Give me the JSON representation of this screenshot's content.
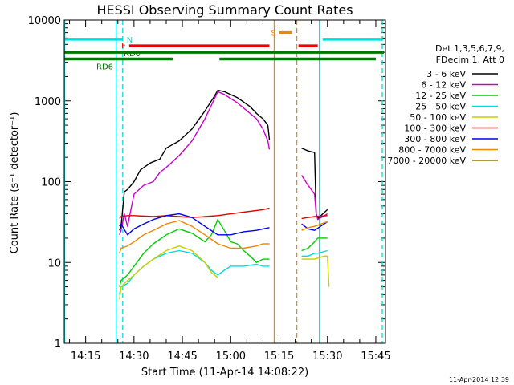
{
  "chart_data": {
    "type": "line",
    "title": "HESSI Observing Summary Count Rates",
    "xlabel": "Start Time (11-Apr-14 14:08:22)",
    "ylabel": "Count Rate (s⁻¹ detector⁻¹)",
    "yscale": "log",
    "ylim": [
      1,
      10000
    ],
    "xlim": [
      "14:08:22",
      "15:48:00"
    ],
    "x_ticks": [
      "14:15",
      "14:30",
      "14:45",
      "15:00",
      "15:15",
      "15:30",
      "15:45"
    ],
    "y_ticks": [
      "1",
      "10",
      "100",
      "1000",
      "10000"
    ],
    "grid": false,
    "legend_position": "right",
    "legend_header": [
      "Det 1,3,5,6,7,9,",
      "FDecim 1, Att 0"
    ],
    "date_stamp": "11-Apr-2014 12:39",
    "series": [
      {
        "name": "3 - 6 keV",
        "color": "#000000",
        "segments": [
          {
            "x": [
              "14:25:30",
              "14:26:00",
              "14:27:00",
              "14:28:00",
              "14:30:00",
              "14:32:00",
              "14:35:00",
              "14:38:00",
              "14:40:00",
              "14:44:00",
              "14:48:00",
              "14:52:00",
              "14:55:00",
              "14:56:00",
              "14:58:00",
              "15:02:00",
              "15:06:00",
              "15:08:00",
              "15:10:00",
              "15:11:30",
              "15:12:00"
            ],
            "y": [
              25,
              28,
              75,
              80,
              100,
              140,
              170,
              190,
              260,
              320,
              450,
              750,
              1150,
              1350,
              1300,
              1100,
              850,
              700,
              600,
              500,
              330
            ]
          },
          {
            "x": [
              "15:22:00",
              "15:24:00",
              "15:26:00",
              "15:26:30",
              "15:27:00",
              "15:30:00"
            ],
            "y": [
              260,
              240,
              230,
              40,
              35,
              45
            ]
          }
        ]
      },
      {
        "name": "6 - 12 keV",
        "color": "#cc00cc",
        "segments": [
          {
            "x": [
              "14:25:30",
              "14:26:00",
              "14:27:00",
              "14:28:00",
              "14:30:00",
              "14:33:00",
              "14:36:00",
              "14:38:00",
              "14:40:00",
              "14:44:00",
              "14:48:00",
              "14:52:00",
              "14:56:00",
              "14:58:00",
              "15:02:00",
              "15:06:00",
              "15:08:00",
              "15:10:00",
              "15:11:30",
              "15:12:00"
            ],
            "y": [
              22,
              25,
              40,
              28,
              70,
              90,
              100,
              130,
              150,
              210,
              320,
              600,
              1300,
              1200,
              950,
              700,
              600,
              450,
              320,
              250
            ]
          },
          {
            "x": [
              "15:22:00",
              "15:24:00",
              "15:26:00",
              "15:26:30",
              "15:27:00",
              "15:30:00"
            ],
            "y": [
              120,
              90,
              70,
              40,
              34,
              40
            ]
          }
        ]
      },
      {
        "name": "12 - 25 keV",
        "color": "#00cc00",
        "segments": [
          {
            "x": [
              "14:25:30",
              "14:26:00",
              "14:28:00",
              "14:30:00",
              "14:33:00",
              "14:36:00",
              "14:40:00",
              "14:44:00",
              "14:48:00",
              "14:52:00",
              "14:54:00",
              "14:56:00",
              "14:58:00",
              "15:00:00",
              "15:02:00",
              "15:04:00",
              "15:06:00",
              "15:08:00",
              "15:10:00",
              "15:12:00"
            ],
            "y": [
              5,
              6,
              7,
              9,
              13,
              17,
              22,
              26,
              23,
              18,
              22,
              34,
              25,
              18,
              17,
              14,
              12,
              10,
              11,
              11
            ]
          },
          {
            "x": [
              "15:22:00",
              "15:24:00",
              "15:26:00",
              "15:27:00",
              "15:30:00"
            ],
            "y": [
              14,
              15,
              18,
              20,
              20
            ]
          }
        ]
      },
      {
        "name": "25 - 50 keV",
        "color": "#00dddd",
        "segments": [
          {
            "x": [
              "14:25:30",
              "14:26:00",
              "14:28:00",
              "14:30:00",
              "14:33:00",
              "14:36:00",
              "14:40:00",
              "14:44:00",
              "14:48:00",
              "14:52:00",
              "14:54:00",
              "14:56:00",
              "14:58:00",
              "15:00:00",
              "15:04:00",
              "15:08:00",
              "15:10:00",
              "15:12:00"
            ],
            "y": [
              4,
              5,
              5.5,
              7,
              9,
              11,
              13,
              14,
              13,
              10,
              8,
              7,
              8,
              9,
              9,
              9.5,
              9,
              9
            ]
          },
          {
            "x": [
              "15:22:00",
              "15:24:00",
              "15:26:00",
              "15:27:00",
              "15:30:00"
            ],
            "y": [
              12,
              12,
              13,
              13,
              14
            ]
          }
        ]
      },
      {
        "name": "50 - 100 keV",
        "color": "#cccc00",
        "segments": [
          {
            "x": [
              "14:25:30",
              "14:26:00",
              "14:28:00",
              "14:30:00",
              "14:33:00",
              "14:36:00",
              "14:40:00",
              "14:44:00",
              "14:48:00",
              "14:52:00",
              "14:54:00",
              "14:56:00"
            ],
            "y": [
              3.5,
              5,
              6,
              7,
              9,
              11,
              14,
              16,
              14,
              10,
              7.5,
              6.5
            ]
          },
          {
            "x": [
              "15:22:00",
              "15:26:00",
              "15:29:00",
              "15:30:00",
              "15:30:30"
            ],
            "y": [
              11,
              11,
              12,
              12,
              5
            ]
          }
        ]
      },
      {
        "name": "100 - 300 keV",
        "color": "#dd0000",
        "segments": [
          {
            "x": [
              "14:25:30",
              "14:26:00",
              "14:28:00",
              "14:30:00",
              "14:36:00",
              "14:40:00",
              "14:44:00",
              "14:48:00",
              "14:52:00",
              "14:56:00",
              "15:00:00",
              "15:04:00",
              "15:08:00",
              "15:10:00",
              "15:12:00"
            ],
            "y": [
              35,
              37,
              38,
              38,
              37,
              38,
              37,
              36,
              37,
              38,
              40,
              42,
              44,
              45,
              47
            ]
          },
          {
            "x": [
              "15:22:00",
              "15:26:00",
              "15:30:00"
            ],
            "y": [
              35,
              37,
              38
            ]
          }
        ]
      },
      {
        "name": "300 - 800 keV",
        "color": "#0000ee",
        "segments": [
          {
            "x": [
              "14:25:30",
              "14:26:00",
              "14:28:00",
              "14:30:00",
              "14:33:00",
              "14:36:00",
              "14:40:00",
              "14:44:00",
              "14:48:00",
              "14:52:00",
              "14:56:00",
              "15:00:00",
              "15:04:00",
              "15:08:00",
              "15:10:00",
              "15:12:00"
            ],
            "y": [
              28,
              30,
              22,
              26,
              30,
              34,
              38,
              40,
              36,
              28,
              22,
              22,
              24,
              25,
              26,
              27
            ]
          },
          {
            "x": [
              "15:22:00",
              "15:24:00",
              "15:26:00",
              "15:30:00"
            ],
            "y": [
              30,
              26,
              25,
              32
            ]
          }
        ]
      },
      {
        "name": "800 - 7000 keV",
        "color": "#ee8800",
        "segments": [
          {
            "x": [
              "14:25:30",
              "14:26:00",
              "14:28:00",
              "14:30:00",
              "14:33:00",
              "14:36:00",
              "14:40:00",
              "14:44:00",
              "14:48:00",
              "14:52:00",
              "14:56:00",
              "15:00:00",
              "15:04:00",
              "15:08:00",
              "15:10:00",
              "15:12:00"
            ],
            "y": [
              13,
              15,
              16,
              18,
              22,
              25,
              30,
              33,
              28,
              22,
              17,
              15,
              15,
              16,
              17,
              17
            ]
          },
          {
            "x": [
              "15:22:00",
              "15:24:00",
              "15:26:00",
              "15:28:00",
              "15:30:00"
            ],
            "y": [
              25,
              27,
              28,
              30,
              32
            ]
          }
        ]
      },
      {
        "name": "7000 - 20000 keV",
        "color": "#997700",
        "segments": []
      }
    ],
    "intervals": [
      {
        "label": "N",
        "color": "#00dddd",
        "level": 5800,
        "ranges": [
          [
            "14:08:22",
            "14:26:30"
          ],
          [
            "15:28:30",
            "15:47:00"
          ]
        ]
      },
      {
        "label": "F",
        "color": "#ee0000",
        "level": 4800,
        "ranges": [
          [
            "14:28:30",
            "15:12:00"
          ],
          [
            "15:21:00",
            "15:27:00"
          ]
        ]
      },
      {
        "label": "S",
        "color": "#ee8800",
        "level": 7000,
        "ranges": [
          [
            "15:15:00",
            "15:19:00"
          ]
        ]
      },
      {
        "label": "RD0",
        "color": "#007700",
        "level": 4000,
        "ranges": [
          [
            "14:08:22",
            "15:47:30"
          ]
        ]
      },
      {
        "label": "RD6",
        "color": "#007700",
        "level": 3300,
        "ranges": [
          [
            "14:08:22",
            "14:42:00"
          ],
          [
            "14:56:30",
            "15:45:00"
          ]
        ]
      }
    ],
    "vlines": [
      {
        "time": "14:08:30",
        "color": "#00dddd",
        "style": "solid"
      },
      {
        "time": "14:24:30",
        "color": "#00dddd",
        "style": "solid"
      },
      {
        "time": "14:26:30",
        "color": "#00dddd",
        "style": "dashed"
      },
      {
        "time": "15:13:30",
        "color": "#ee8800",
        "style": "solid"
      },
      {
        "time": "15:20:30",
        "color": "#ee8800",
        "style": "dashed"
      },
      {
        "time": "15:27:30",
        "color": "#00dddd",
        "style": "solid"
      },
      {
        "time": "15:47:00",
        "color": "#00dddd",
        "style": "dashed"
      }
    ]
  }
}
